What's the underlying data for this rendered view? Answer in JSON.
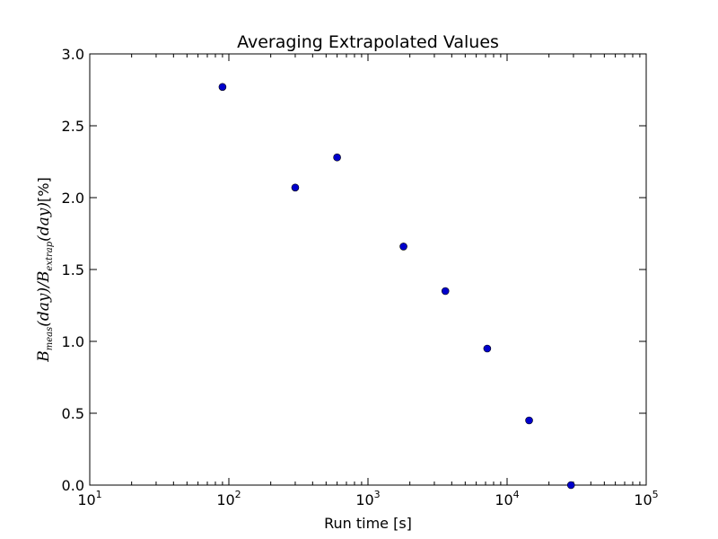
{
  "chart_data": {
    "type": "scatter",
    "title": "Averaging Extrapolated Values",
    "xlabel": "Run time [s]",
    "ylabel": {
      "b1": "B",
      "sub1": "meas",
      "mid": "(day)/",
      "b2": "B",
      "sub2": "extrap",
      "end": "(day)",
      "unit": "[%]"
    },
    "xscale": "log",
    "xlim": [
      10,
      100000
    ],
    "ylim": [
      0.0,
      3.0
    ],
    "x_ticks": [
      {
        "base": "10",
        "exp": "1",
        "value": 10
      },
      {
        "base": "10",
        "exp": "2",
        "value": 100
      },
      {
        "base": "10",
        "exp": "3",
        "value": 1000
      },
      {
        "base": "10",
        "exp": "4",
        "value": 10000
      },
      {
        "base": "10",
        "exp": "5",
        "value": 100000
      }
    ],
    "y_ticks": [
      "0.0",
      "0.5",
      "1.0",
      "1.5",
      "2.0",
      "2.5",
      "3.0"
    ],
    "grid": false,
    "legend": null,
    "marker_color": "#0000cc",
    "series": [
      {
        "x": [
          90,
          300,
          600,
          1800,
          3600,
          7200,
          14400,
          28800
        ],
        "y": [
          2.77,
          2.07,
          2.28,
          1.66,
          1.35,
          0.95,
          0.45,
          0.0
        ]
      }
    ]
  }
}
